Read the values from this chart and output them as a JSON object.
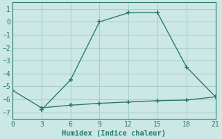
{
  "line1_x": [
    3,
    6,
    9,
    12,
    15,
    18,
    21
  ],
  "line1_y": [
    -6.8,
    -4.5,
    0.0,
    0.7,
    0.7,
    -3.5,
    -5.8
  ],
  "line2_x": [
    0,
    3,
    6,
    9,
    12,
    15,
    18,
    21
  ],
  "line2_y": [
    -5.3,
    -6.65,
    -6.45,
    -6.3,
    -6.2,
    -6.1,
    -6.05,
    -5.8
  ],
  "color": "#2a7a6a",
  "bg_color": "#cce8e4",
  "grid_color": "#aacfcc",
  "xlabel": "Humidex (Indice chaleur)",
  "xlim": [
    0,
    21
  ],
  "ylim": [
    -7.5,
    1.5
  ],
  "xticks": [
    0,
    3,
    6,
    9,
    12,
    15,
    18,
    21
  ],
  "yticks": [
    1,
    0,
    -1,
    -2,
    -3,
    -4,
    -5,
    -6,
    -7
  ],
  "font_family": "monospace"
}
